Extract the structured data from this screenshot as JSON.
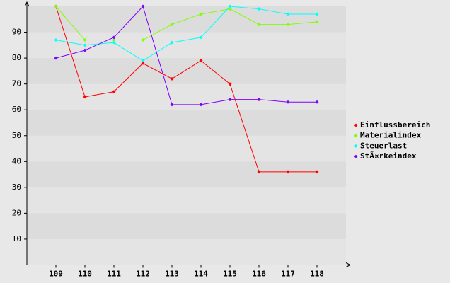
{
  "chart_data": {
    "type": "line",
    "categories": [
      "109",
      "110",
      "111",
      "112",
      "113",
      "114",
      "115",
      "116",
      "117",
      "118"
    ],
    "series": [
      {
        "name": "Einflussbereich",
        "color": "#ff0000",
        "values": [
          100,
          65,
          67,
          78,
          72,
          79,
          70,
          36,
          36,
          36
        ]
      },
      {
        "name": "Materialindex",
        "color": "#80ff00",
        "values": [
          100,
          87,
          87,
          87,
          93,
          97,
          99,
          93,
          93,
          94
        ]
      },
      {
        "name": "Steuerlast",
        "color": "#00ffff",
        "values": [
          87,
          85,
          86,
          79,
          86,
          88,
          100,
          99,
          97,
          97
        ]
      },
      {
        "name": "StÃ¤rkeindex",
        "color": "#8000ff",
        "values": [
          80,
          83,
          88,
          100,
          62,
          62,
          64,
          64,
          63,
          63
        ]
      }
    ],
    "ylim": [
      0,
      100
    ],
    "yticks": [
      10,
      20,
      30,
      40,
      50,
      60,
      70,
      80,
      90
    ],
    "grid": true,
    "legend": "right"
  }
}
